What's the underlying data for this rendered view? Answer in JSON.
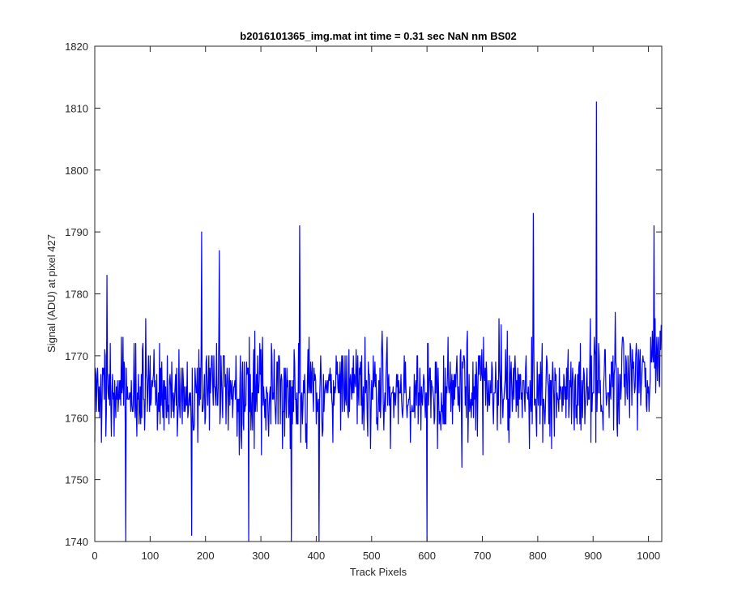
{
  "chart_data": {
    "type": "line",
    "title": "b2016101365_img.mat int time = 0.31 sec  NaN nm BS02",
    "xlabel": "Track Pixels",
    "ylabel": "Signal (ADU) at pixel 427",
    "xlim": [
      0,
      1024
    ],
    "ylim": [
      1740,
      1820
    ],
    "xticks": [
      "0",
      "100",
      "200",
      "300",
      "400",
      "500",
      "600",
      "700",
      "800",
      "900",
      "1000"
    ],
    "yticks": [
      "1740",
      "1750",
      "1760",
      "1770",
      "1780",
      "1790",
      "1800",
      "1810",
      "1820"
    ],
    "grid": false,
    "series": [
      {
        "color": "#0000ff",
        "x_start": 0,
        "x_step": 1,
        "n_points": 1024,
        "baseline_mean": 1764.5,
        "notable_points": [
          {
            "x": 22,
            "y": 1783
          },
          {
            "x": 56,
            "y": 1740
          },
          {
            "x": 175,
            "y": 1741
          },
          {
            "x": 193,
            "y": 1790
          },
          {
            "x": 225,
            "y": 1787
          },
          {
            "x": 278,
            "y": 1740
          },
          {
            "x": 355,
            "y": 1740
          },
          {
            "x": 370,
            "y": 1791
          },
          {
            "x": 405,
            "y": 1740
          },
          {
            "x": 600,
            "y": 1740
          },
          {
            "x": 792,
            "y": 1793
          },
          {
            "x": 906,
            "y": 1811
          },
          {
            "x": 1010,
            "y": 1791
          }
        ]
      }
    ]
  }
}
